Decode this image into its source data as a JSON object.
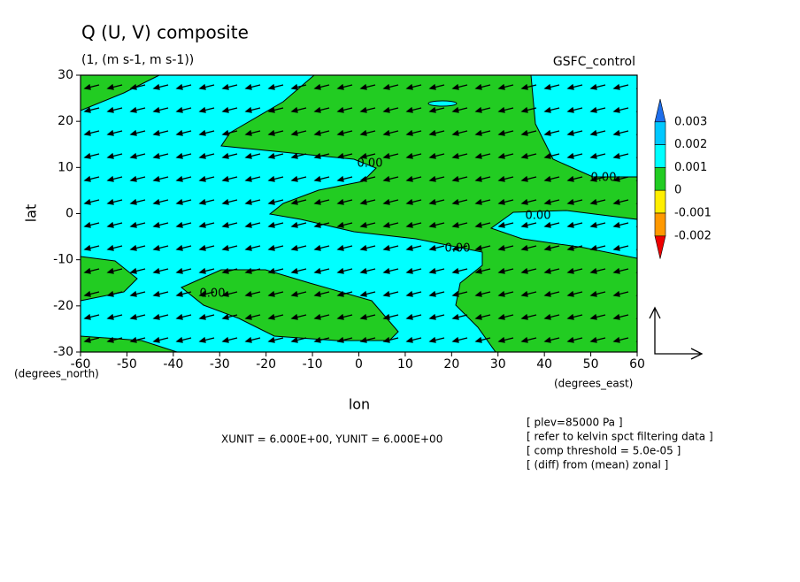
{
  "chart_data": {
    "type": "contour",
    "title": "Q (U, V) composite",
    "subtitle": "(1, (m s-1, m s-1))",
    "source_label": "GSFC_control",
    "x_label": "lon",
    "y_label": "lat",
    "x_unit_label": "(degrees_east)",
    "y_unit_label": "(degrees_north)",
    "xlim": [
      -60,
      60
    ],
    "xticks": [
      -60,
      -50,
      -40,
      -30,
      -20,
      -10,
      0,
      10,
      20,
      30,
      40,
      50,
      60
    ],
    "ylim": [
      -30,
      30
    ],
    "yticks": [
      -30,
      -20,
      -10,
      0,
      10,
      20,
      30
    ],
    "contour_labels": [
      "0.00",
      "0.00",
      "0.00",
      "0.00",
      "0.00"
    ],
    "vector_scale_label": "XUNIT = 6.000E+00, YUNIT = 6.000E+00",
    "notes": [
      "[ plev=85000 Pa ]",
      "[ refer to kelvin spct filtering data ]",
      "[ comp threshold = 5.0e-05 ]",
      "[ (diff) from (mean) zonal ]"
    ],
    "colorbar": {
      "levels": [
        -0.002,
        -0.001,
        0,
        0.001,
        0.002,
        0.003
      ],
      "colors": [
        "#1e6eeb",
        "#00c8ff",
        "#00ffff",
        "#22cc22",
        "#ffee00",
        "#ff9900",
        "#ee0000"
      ]
    }
  }
}
